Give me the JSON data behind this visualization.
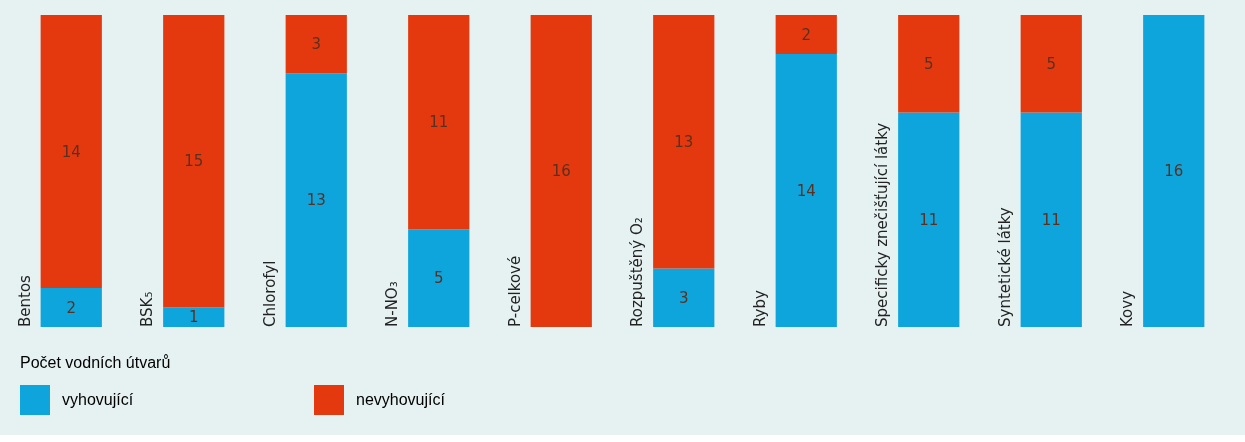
{
  "chart_data": {
    "type": "bar",
    "stacked": true,
    "data_labels": true,
    "legend": "bottom",
    "legend_title": "Počet vodních útvarů",
    "categories": [
      "Bentos",
      "BSK₅",
      "Chlorofyl",
      "N-NO₃",
      "P-celkové",
      "Rozpuštěný O₂",
      "Ryby",
      "Specificky znečišťující látky",
      "Syntetické látky",
      "Kovy"
    ],
    "series": [
      {
        "name": "vyhovující",
        "color": "#0ea5dc",
        "values": [
          2,
          1,
          13,
          5,
          null,
          3,
          14,
          11,
          11,
          16
        ]
      },
      {
        "name": "nevyhovující",
        "color": "#e4390f",
        "values": [
          14,
          15,
          3,
          11,
          16,
          13,
          2,
          5,
          5,
          null
        ]
      }
    ]
  }
}
